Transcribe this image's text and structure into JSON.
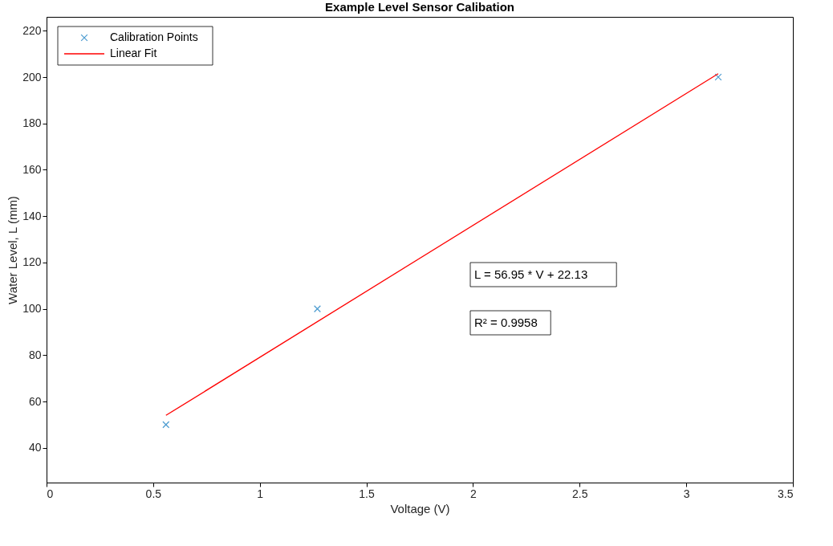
{
  "chart_data": {
    "type": "scatter",
    "title": "Example Level Sensor Calibation",
    "xlabel": "Voltage (V)",
    "ylabel": "Water Level,  L (mm)",
    "xlim": [
      0,
      3.5
    ],
    "xticks": [
      0,
      0.5,
      1,
      1.5,
      2,
      2.5,
      3,
      3.5
    ],
    "ylim": [
      25,
      226
    ],
    "yticks": [
      40,
      60,
      80,
      100,
      120,
      140,
      160,
      180,
      200,
      220
    ],
    "grid": false,
    "legend": "top left",
    "series": [
      {
        "name": "Calibration Points",
        "marker": "cross",
        "color": "#0072bd",
        "x": [
          0.56,
          1.27,
          3.15
        ],
        "values": [
          50,
          100,
          200
        ]
      },
      {
        "name": "Linear Fit",
        "type": "line",
        "line_style": "solid",
        "color": "#ff0000",
        "x": [
          0.56,
          3.15
        ],
        "values": [
          54.0,
          201.5
        ]
      }
    ],
    "annotations": [
      "L = 56.95 * V + 22.13",
      "R² = 0.9958"
    ]
  }
}
